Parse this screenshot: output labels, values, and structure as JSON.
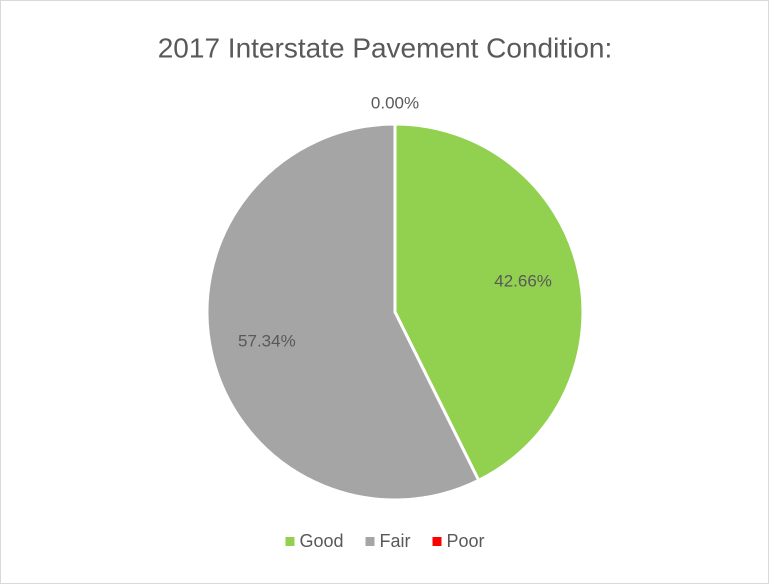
{
  "chart_data": {
    "type": "pie",
    "title": "2017 Interstate Pavement Condition:",
    "categories": [
      "Good",
      "Fair",
      "Poor"
    ],
    "values": [
      42.66,
      57.34,
      0
    ],
    "value_labels": [
      "42.66%",
      "57.34%",
      "0.00%"
    ],
    "colors": [
      "#92d050",
      "#a5a5a5",
      "#ff0000"
    ],
    "legend": "bottom"
  }
}
